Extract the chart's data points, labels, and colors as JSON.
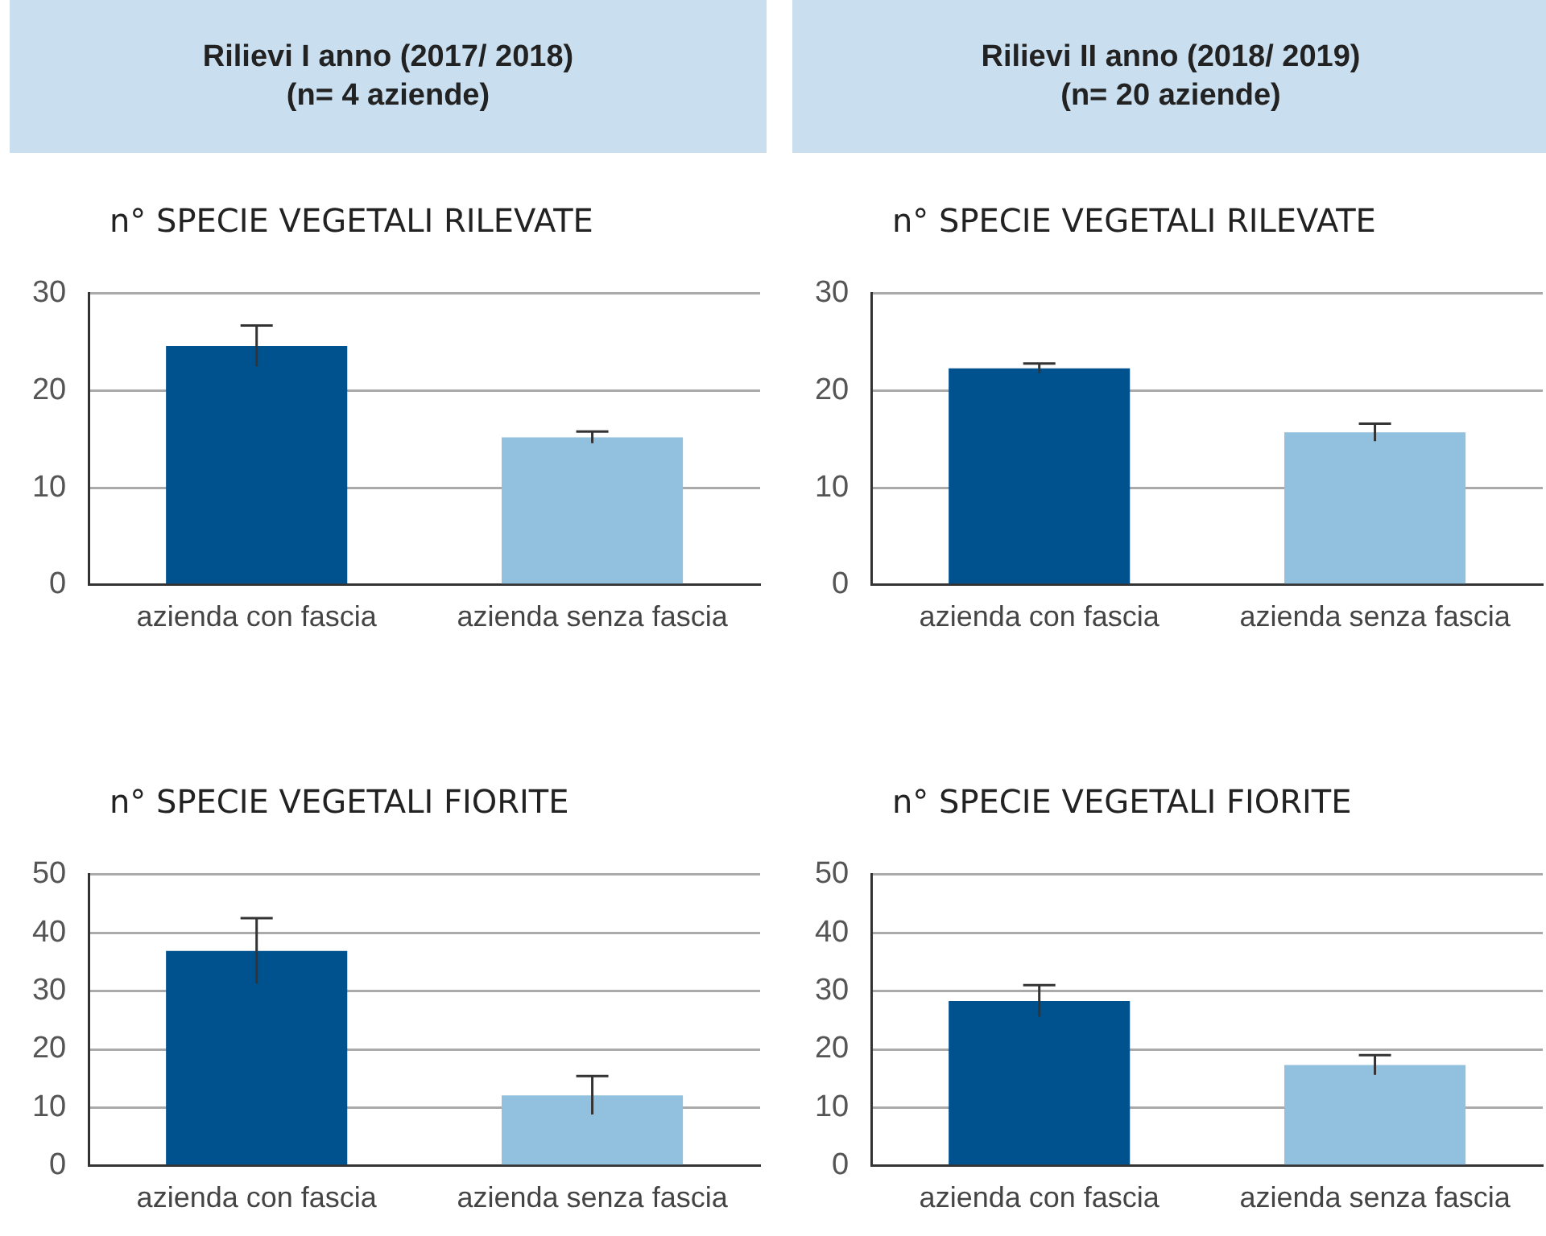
{
  "chart_data": [
    {
      "type": "bar",
      "subtitle": "Rilievi I anno (2017/ 2018)\n(n= 4 aziende)",
      "title": "n° SPECIE VEGETALI RILEVATE",
      "categories": [
        "azienda con fascia",
        "azienda senza fascia"
      ],
      "values": [
        24.6,
        15.2
      ],
      "errors": [
        2.1,
        0.6
      ],
      "colors": [
        "#00528f",
        "#92c0df"
      ],
      "ylim": [
        0,
        30
      ],
      "yticks": [
        0,
        10,
        20,
        30
      ],
      "grid": "y"
    },
    {
      "type": "bar",
      "subtitle": "Rilievi II anno (2018/ 2019)\n(n= 20 aziende)",
      "title": "n° SPECIE VEGETALI RILEVATE",
      "categories": [
        "azienda con fascia",
        "azienda senza fascia"
      ],
      "values": [
        22.3,
        15.7
      ],
      "errors": [
        0.5,
        0.9
      ],
      "colors": [
        "#00528f",
        "#92c0df"
      ],
      "ylim": [
        0,
        30
      ],
      "yticks": [
        0,
        10,
        20,
        30
      ],
      "grid": "y"
    },
    {
      "type": "bar",
      "title": "n° SPECIE VEGETALI FIORITE",
      "categories": [
        "azienda con fascia",
        "azienda senza fascia"
      ],
      "values": [
        36.9,
        12.1
      ],
      "errors": [
        5.6,
        3.3
      ],
      "colors": [
        "#00528f",
        "#92c0df"
      ],
      "ylim": [
        0,
        50
      ],
      "yticks": [
        0,
        10,
        20,
        30,
        40,
        50
      ],
      "grid": "y"
    },
    {
      "type": "bar",
      "title": "n° SPECIE VEGETALI FIORITE",
      "categories": [
        "azienda con fascia",
        "azienda senza fascia"
      ],
      "values": [
        28.3,
        17.3
      ],
      "errors": [
        2.7,
        1.7
      ],
      "colors": [
        "#00528f",
        "#92c0df"
      ],
      "ylim": [
        0,
        50
      ],
      "yticks": [
        0,
        10,
        20,
        30,
        40,
        50
      ],
      "grid": "y"
    }
  ]
}
